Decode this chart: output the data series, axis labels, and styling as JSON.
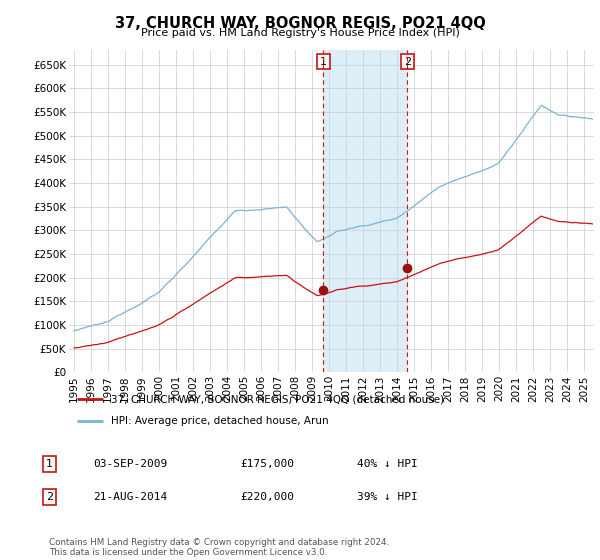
{
  "title": "37, CHURCH WAY, BOGNOR REGIS, PO21 4QQ",
  "subtitle": "Price paid vs. HM Land Registry's House Price Index (HPI)",
  "ylim": [
    0,
    680000
  ],
  "xlim_start": 1994.7,
  "xlim_end": 2025.6,
  "hpi_color": "#7ab3d4",
  "price_color": "#cc1111",
  "vline_color": "#cc1111",
  "span_color": "#dceef7",
  "marker1_date": 2009.67,
  "marker2_date": 2014.61,
  "marker1_price": 175000,
  "marker2_price": 220000,
  "legend_line1": "37, CHURCH WAY, BOGNOR REGIS, PO21 4QQ (detached house)",
  "legend_line2": "HPI: Average price, detached house, Arun",
  "table_row1": [
    "1",
    "03-SEP-2009",
    "£175,000",
    "40% ↓ HPI"
  ],
  "table_row2": [
    "2",
    "21-AUG-2014",
    "£220,000",
    "39% ↓ HPI"
  ],
  "footnote": "Contains HM Land Registry data © Crown copyright and database right 2024.\nThis data is licensed under the Open Government Licence v3.0.",
  "background_color": "#ffffff",
  "grid_color": "#cccccc"
}
